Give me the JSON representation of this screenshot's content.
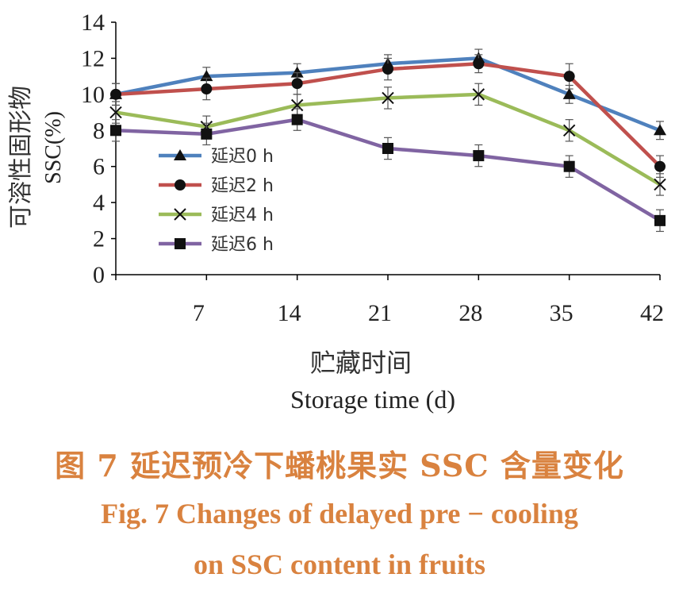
{
  "chart_data": {
    "type": "line",
    "ylabel_cn": "可溶性固形物",
    "ylabel_en": "SSC(%)",
    "xlabel_cn": "贮藏时间",
    "xlabel_en": "Storage time (d)",
    "x": [
      0,
      7,
      14,
      21,
      28,
      35,
      42
    ],
    "xtick_labels": [
      "7",
      "14",
      "21",
      "28",
      "35",
      "42"
    ],
    "ylim": [
      0,
      14
    ],
    "yticks": [
      0,
      2,
      4,
      6,
      8,
      10,
      12,
      14
    ],
    "legend_position": "left-center",
    "series": [
      {
        "name": "延迟0 h",
        "marker": "triangle",
        "color": "#4f81bd",
        "values": [
          10.0,
          11.0,
          11.2,
          11.7,
          12.0,
          10.0,
          8.0
        ],
        "err": [
          0.6,
          0.5,
          0.5,
          0.5,
          0.5,
          0.5,
          0.5
        ]
      },
      {
        "name": "延迟2 h",
        "marker": "circle",
        "color": "#c0504d",
        "values": [
          10.0,
          10.3,
          10.6,
          11.4,
          11.7,
          11.0,
          6.0
        ],
        "err": [
          0.6,
          0.6,
          0.6,
          0.6,
          0.5,
          0.7,
          0.6
        ]
      },
      {
        "name": "延迟4 h",
        "marker": "x",
        "color": "#9bbb59",
        "values": [
          9.0,
          8.2,
          9.4,
          9.8,
          10.0,
          8.0,
          5.0
        ],
        "err": [
          0.6,
          0.6,
          0.6,
          0.6,
          0.6,
          0.6,
          0.6
        ]
      },
      {
        "name": "延迟6 h",
        "marker": "square",
        "color": "#8064a2",
        "values": [
          8.0,
          7.8,
          8.6,
          7.0,
          6.6,
          6.0,
          3.0
        ],
        "err": [
          0.6,
          0.6,
          0.6,
          0.6,
          0.6,
          0.6,
          0.6
        ]
      }
    ]
  },
  "caption": {
    "cn": "图 7    延迟预冷下蟠桃果实 SSC 含量变化",
    "en_line1": "Fig. 7    Changes of delayed pre − cooling",
    "en_line2": "on SSC content in fruits"
  }
}
